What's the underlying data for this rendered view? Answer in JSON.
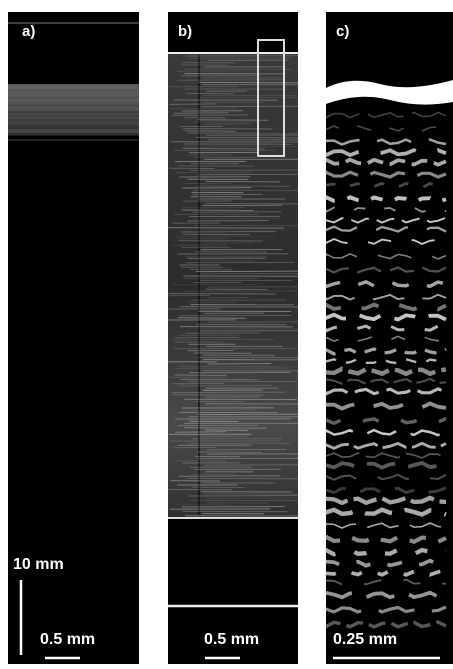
{
  "panels": [
    {
      "label": "a)",
      "scale_bars": [
        "10 mm",
        "0.5 mm"
      ]
    },
    {
      "label": "b)",
      "scale_bars": [
        "0.5 mm"
      ]
    },
    {
      "label": "c)",
      "scale_bars": [
        "0.25 mm"
      ]
    }
  ]
}
